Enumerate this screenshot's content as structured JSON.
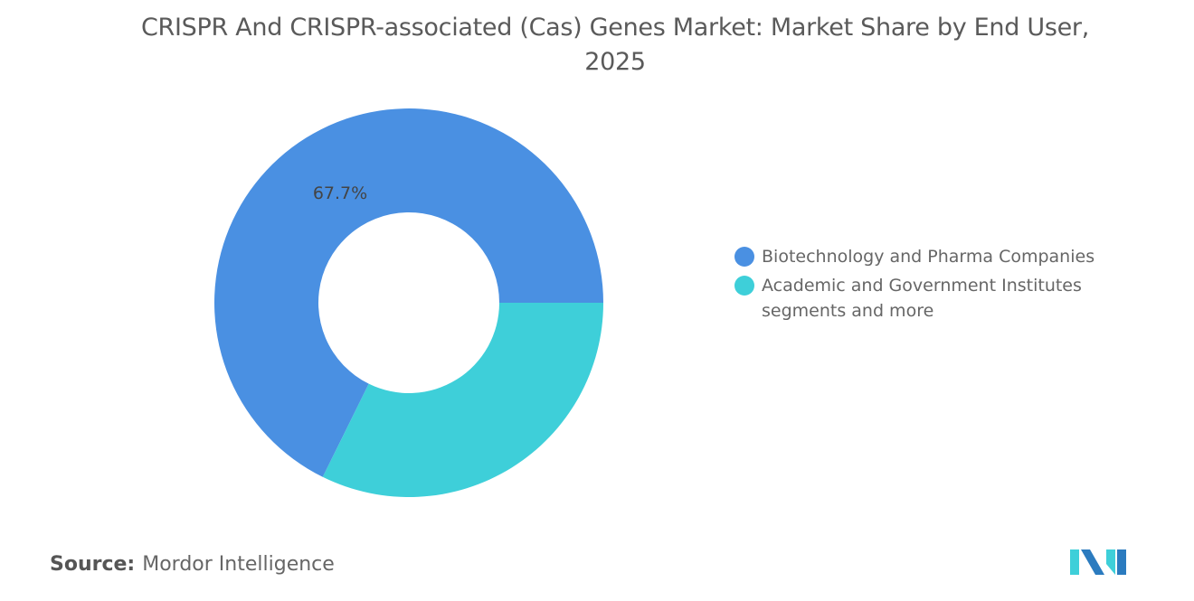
{
  "title": "CRISPR And CRISPR-associated (Cas) Genes Market: Market Share by End User, 2025",
  "chart_data": {
    "type": "pie",
    "donut": true,
    "title": "CRISPR And CRISPR-associated (Cas) Genes Market: Market Share by End User, 2025",
    "categories": [
      "Biotechnology and Pharma Companies",
      "Academic and Government Institutes segments and more"
    ],
    "values": [
      67.7,
      32.3
    ],
    "data_labels": [
      "67.7%",
      ""
    ],
    "colors": [
      "#4a90e2",
      "#3ecfd9"
    ],
    "legend_position": "right"
  },
  "source": {
    "label": "Source:",
    "value": "Mordor Intelligence"
  },
  "logo": {
    "colors": [
      "#2b7bbf",
      "#3ecfd9"
    ]
  }
}
